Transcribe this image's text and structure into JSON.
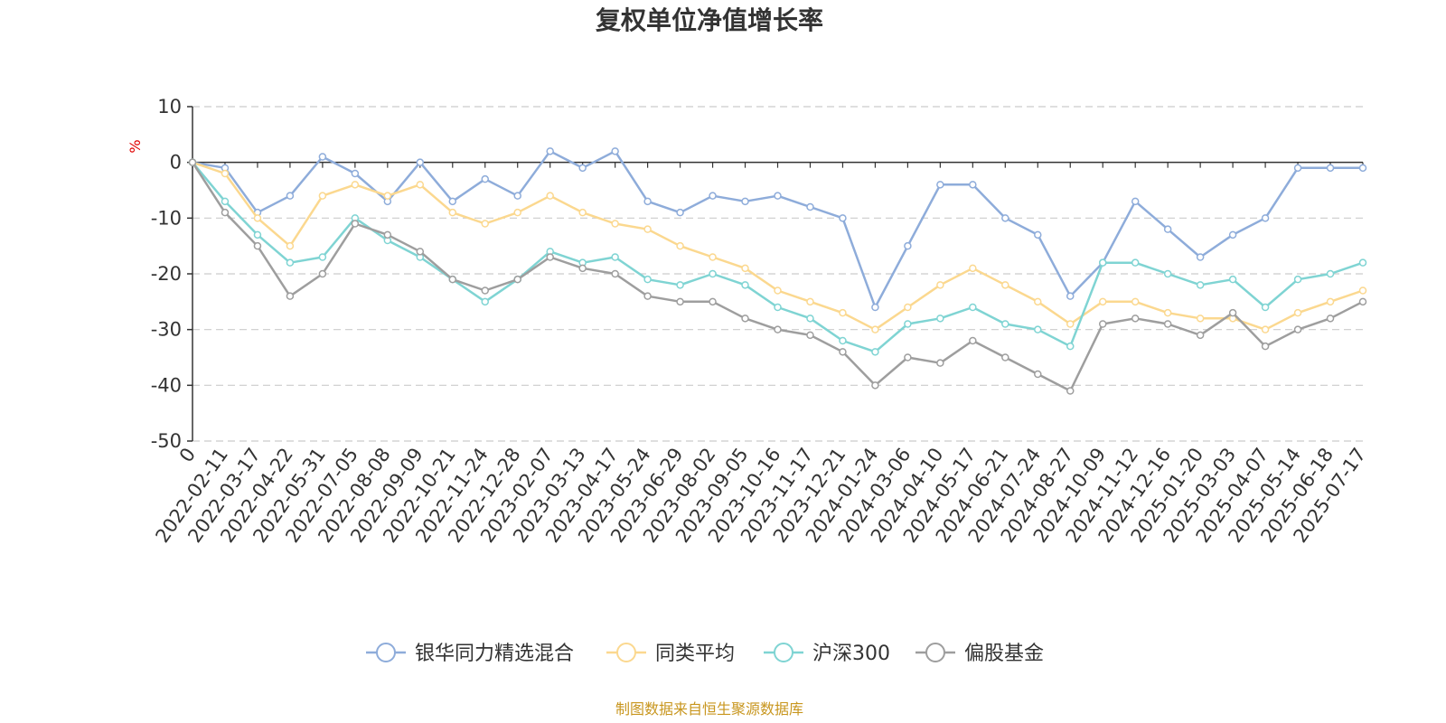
{
  "chart_data": {
    "type": "line",
    "title": "复权单位净值增长率",
    "ylabel": "%",
    "xlabel": "",
    "ylim": [
      -50,
      10
    ],
    "yticks": [
      10,
      0,
      -10,
      -20,
      -30,
      -40,
      -50
    ],
    "grid": true,
    "legend_position": "bottom-center",
    "source_note": "制图数据来自恒生聚源数据库",
    "x": [
      "0",
      "2022-02-11",
      "2022-03-17",
      "2022-04-22",
      "2022-05-31",
      "2022-07-05",
      "2022-08-08",
      "2022-09-09",
      "2022-10-21",
      "2022-11-24",
      "2022-12-28",
      "2023-02-07",
      "2023-03-13",
      "2023-04-17",
      "2023-05-24",
      "2023-06-29",
      "2023-08-02",
      "2023-09-05",
      "2023-10-16",
      "2023-11-17",
      "2023-12-21",
      "2024-01-24",
      "2024-03-06",
      "2024-04-10",
      "2024-05-17",
      "2024-06-21",
      "2024-07-24",
      "2024-08-27",
      "2024-10-09",
      "2024-11-12",
      "2024-12-16",
      "2025-01-20",
      "2025-03-03",
      "2025-04-07",
      "2025-05-14",
      "2025-06-18",
      "2025-07-17"
    ],
    "series": [
      {
        "name": "银华同力精选混合",
        "color": "#8eacda",
        "values": [
          0,
          -1,
          -9,
          -6,
          1,
          -2,
          -7,
          0,
          -7,
          -3,
          -6,
          2,
          -1,
          2,
          -7,
          -9,
          -6,
          -7,
          -6,
          -8,
          -10,
          -26,
          -15,
          -4,
          -4,
          -10,
          -13,
          -24,
          -18,
          -7,
          -12,
          -17,
          -13,
          -10,
          -1,
          -1,
          -1
        ]
      },
      {
        "name": "同类平均",
        "color": "#fbd88f",
        "values": [
          0,
          -2,
          -10,
          -15,
          -6,
          -4,
          -6,
          -4,
          -9,
          -11,
          -9,
          -6,
          -9,
          -11,
          -12,
          -15,
          -17,
          -19,
          -23,
          -25,
          -27,
          -30,
          -26,
          -22,
          -19,
          -22,
          -25,
          -29,
          -25,
          -25,
          -27,
          -28,
          -28,
          -30,
          -27,
          -25,
          -23
        ]
      },
      {
        "name": "沪深300",
        "color": "#7fd4d3",
        "values": [
          0,
          -7,
          -13,
          -18,
          -17,
          -10,
          -14,
          -17,
          -21,
          -25,
          -21,
          -16,
          -18,
          -17,
          -21,
          -22,
          -20,
          -22,
          -26,
          -28,
          -32,
          -34,
          -29,
          -28,
          -26,
          -29,
          -30,
          -33,
          -18,
          -18,
          -20,
          -22,
          -21,
          -26,
          -21,
          -20,
          -18
        ]
      },
      {
        "name": "偏股基金",
        "color": "#9e9e9e",
        "values": [
          0,
          -9,
          -15,
          -24,
          -20,
          -11,
          -13,
          -16,
          -21,
          -23,
          -21,
          -17,
          -19,
          -20,
          -24,
          -25,
          -25,
          -28,
          -30,
          -31,
          -34,
          -40,
          -35,
          -36,
          -32,
          -35,
          -38,
          -41,
          -29,
          -28,
          -29,
          -31,
          -27,
          -33,
          -30,
          -28,
          -25
        ]
      }
    ]
  }
}
